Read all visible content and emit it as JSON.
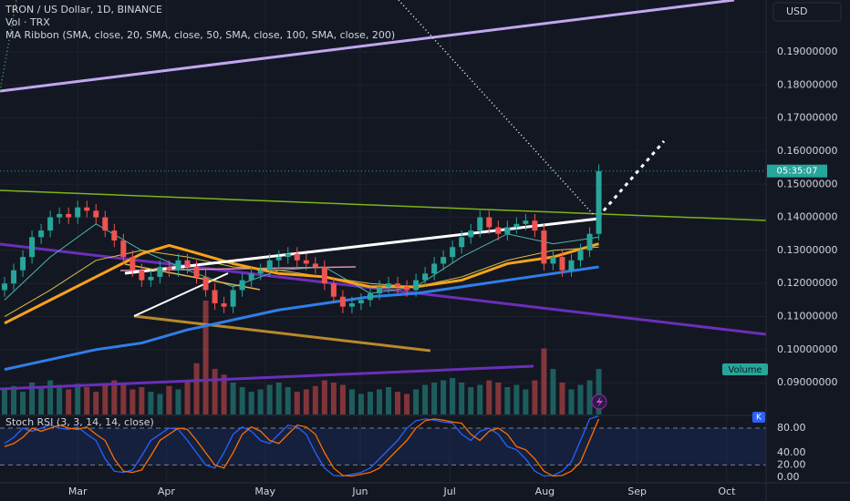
{
  "chart_data": {
    "type": "candlestick",
    "title": "TRON / US Dollar, 1D, BINANCE",
    "subtitle": "Vol · TRX",
    "indicator": "MA Ribbon (SMA, close, 20, SMA, close, 50, SMA, close, 100, SMA, close, 200)",
    "currency": "USD",
    "countdown": "05:35:07",
    "up_color": "#26a69a",
    "down_color": "#ef5350",
    "open": [
      0.118,
      0.12,
      0.124,
      0.128,
      0.134,
      0.136,
      0.14,
      0.141,
      0.14,
      0.143,
      0.142,
      0.14,
      0.136,
      0.133,
      0.128,
      0.124,
      0.121,
      0.122,
      0.125,
      0.124,
      0.127,
      0.125,
      0.122,
      0.118,
      0.114,
      0.113,
      0.118,
      0.121,
      0.123,
      0.124,
      0.127,
      0.128,
      0.129,
      0.127,
      0.126,
      0.125,
      0.12,
      0.116,
      0.113,
      0.114,
      0.115,
      0.117,
      0.119,
      0.12,
      0.119,
      0.118,
      0.121,
      0.123,
      0.126,
      0.128,
      0.131,
      0.134,
      0.136,
      0.14,
      0.137,
      0.135,
      0.137,
      0.138,
      0.139,
      0.136,
      0.126,
      0.128,
      0.124,
      0.127,
      0.13,
      0.135
    ],
    "high": [
      0.122,
      0.126,
      0.13,
      0.136,
      0.138,
      0.142,
      0.143,
      0.143,
      0.145,
      0.145,
      0.144,
      0.142,
      0.138,
      0.135,
      0.13,
      0.126,
      0.124,
      0.127,
      0.127,
      0.129,
      0.129,
      0.127,
      0.124,
      0.12,
      0.116,
      0.12,
      0.123,
      0.125,
      0.126,
      0.129,
      0.13,
      0.131,
      0.131,
      0.129,
      0.128,
      0.127,
      0.122,
      0.118,
      0.116,
      0.117,
      0.119,
      0.121,
      0.122,
      0.122,
      0.121,
      0.123,
      0.125,
      0.128,
      0.13,
      0.133,
      0.136,
      0.138,
      0.142,
      0.142,
      0.139,
      0.139,
      0.14,
      0.141,
      0.141,
      0.138,
      0.13,
      0.13,
      0.129,
      0.132,
      0.137,
      0.156
    ],
    "low": [
      0.116,
      0.118,
      0.122,
      0.126,
      0.132,
      0.134,
      0.138,
      0.138,
      0.138,
      0.14,
      0.138,
      0.134,
      0.131,
      0.126,
      0.122,
      0.119,
      0.119,
      0.12,
      0.122,
      0.122,
      0.123,
      0.12,
      0.116,
      0.112,
      0.111,
      0.111,
      0.116,
      0.119,
      0.121,
      0.122,
      0.125,
      0.126,
      0.125,
      0.124,
      0.123,
      0.118,
      0.114,
      0.111,
      0.111,
      0.112,
      0.113,
      0.115,
      0.117,
      0.117,
      0.116,
      0.116,
      0.119,
      0.121,
      0.124,
      0.126,
      0.129,
      0.132,
      0.134,
      0.135,
      0.133,
      0.133,
      0.135,
      0.136,
      0.134,
      0.124,
      0.124,
      0.122,
      0.122,
      0.125,
      0.128,
      0.133
    ],
    "close": [
      0.12,
      0.124,
      0.128,
      0.134,
      0.136,
      0.14,
      0.141,
      0.14,
      0.143,
      0.142,
      0.14,
      0.136,
      0.133,
      0.128,
      0.124,
      0.121,
      0.122,
      0.125,
      0.124,
      0.127,
      0.125,
      0.122,
      0.118,
      0.114,
      0.113,
      0.118,
      0.121,
      0.123,
      0.124,
      0.127,
      0.128,
      0.129,
      0.127,
      0.126,
      0.125,
      0.12,
      0.116,
      0.113,
      0.114,
      0.115,
      0.117,
      0.119,
      0.12,
      0.119,
      0.118,
      0.121,
      0.123,
      0.126,
      0.128,
      0.131,
      0.134,
      0.136,
      0.14,
      0.137,
      0.135,
      0.137,
      0.138,
      0.139,
      0.136,
      0.126,
      0.128,
      0.124,
      0.127,
      0.13,
      0.135,
      0.154
    ],
    "xlim": [
      -0.5,
      83.3
    ],
    "xticks": [
      {
        "value": 8,
        "label": "Mar"
      },
      {
        "value": 17.7,
        "label": "Apr"
      },
      {
        "value": 28.5,
        "label": "May"
      },
      {
        "value": 38.9,
        "label": "Jun"
      },
      {
        "value": 48.7,
        "label": "Jul"
      },
      {
        "value": 59.1,
        "label": "Aug"
      },
      {
        "value": 69.2,
        "label": "Sep"
      },
      {
        "value": 79,
        "label": "Oct"
      }
    ],
    "ylim": [
      0.0804,
      0.2057
    ],
    "yticks": [
      {
        "value": 0.09,
        "label": "0.09000000"
      },
      {
        "value": 0.1,
        "label": "0.10000000"
      },
      {
        "value": 0.11,
        "label": "0.11000000"
      },
      {
        "value": 0.12,
        "label": "0.12000000"
      },
      {
        "value": 0.13,
        "label": "0.13000000"
      },
      {
        "value": 0.14,
        "label": "0.14000000"
      },
      {
        "value": 0.15,
        "label": "0.15000000"
      },
      {
        "value": 0.16,
        "label": "0.16000000"
      },
      {
        "value": 0.17,
        "label": "0.17000000"
      },
      {
        "value": 0.18,
        "label": "0.18000000"
      },
      {
        "value": 0.19,
        "label": "0.19000000"
      }
    ],
    "volume": {
      "label": "Volume",
      "ylim": [
        0,
        100
      ],
      "values": [
        22,
        25,
        20,
        28,
        24,
        30,
        26,
        22,
        27,
        24,
        20,
        26,
        30,
        28,
        22,
        24,
        20,
        18,
        25,
        22,
        30,
        45,
        100,
        40,
        35,
        28,
        24,
        20,
        22,
        26,
        28,
        24,
        20,
        22,
        25,
        30,
        28,
        26,
        22,
        18,
        20,
        22,
        24,
        20,
        18,
        22,
        26,
        28,
        30,
        32,
        28,
        24,
        26,
        30,
        28,
        24,
        26,
        22,
        30,
        58,
        40,
        28,
        22,
        26,
        30,
        40
      ]
    },
    "ma": [
      {
        "color": "#4db6ac",
        "x": [
          0,
          5,
          10,
          15,
          20,
          25,
          30,
          35,
          40,
          45,
          50,
          55,
          60,
          65
        ],
        "values": [
          0.115,
          0.128,
          0.138,
          0.13,
          0.124,
          0.119,
          0.124,
          0.125,
          0.117,
          0.119,
          0.128,
          0.135,
          0.132,
          0.134
        ]
      },
      {
        "color": "#d4c04a",
        "x": [
          0,
          5,
          10,
          15,
          20,
          25,
          30,
          35,
          40,
          45,
          50,
          55,
          60,
          65
        ],
        "values": [
          0.11,
          0.118,
          0.127,
          0.13,
          0.128,
          0.125,
          0.124,
          0.122,
          0.12,
          0.119,
          0.122,
          0.127,
          0.13,
          0.131
        ]
      },
      {
        "color": "#f7a21b",
        "x": [
          0,
          5,
          10,
          15,
          18,
          20,
          25,
          30,
          35,
          40,
          45,
          50,
          55,
          60,
          65
        ],
        "values": [
          0.108,
          0.115,
          0.122,
          0.129,
          0.1315,
          0.13,
          0.126,
          0.123,
          0.122,
          0.119,
          0.119,
          0.121,
          0.126,
          0.128,
          0.132
        ]
      },
      {
        "color": "#2f7ee8",
        "x": [
          0,
          5,
          10,
          15,
          20,
          25,
          30,
          35,
          40,
          45,
          50,
          55,
          60,
          65
        ],
        "values": [
          0.094,
          0.097,
          0.1,
          0.102,
          0.106,
          0.109,
          0.112,
          0.114,
          0.116,
          0.117,
          0.119,
          0.121,
          0.123,
          0.125
        ]
      }
    ],
    "stoch": {
      "title": "Stoch RSI (3, 3, 14, 14, close)",
      "marker": "K",
      "ylim": [
        -8.9,
        99.3
      ],
      "yticks": [
        {
          "value": 0,
          "label": "0.00"
        },
        {
          "value": 20,
          "label": "20.00"
        },
        {
          "value": 40,
          "label": "40.00"
        },
        {
          "value": 80,
          "label": "80.00"
        }
      ],
      "band": [
        20,
        80
      ],
      "k": {
        "color": "#2962ff",
        "values": [
          55,
          65,
          80,
          75,
          80,
          85,
          80,
          78,
          82,
          70,
          60,
          30,
          10,
          8,
          12,
          35,
          60,
          70,
          80,
          78,
          60,
          40,
          20,
          15,
          40,
          70,
          82,
          75,
          60,
          55,
          70,
          85,
          82,
          70,
          40,
          15,
          3,
          2,
          5,
          8,
          15,
          30,
          45,
          60,
          80,
          92,
          95,
          93,
          90,
          88,
          70,
          60,
          75,
          80,
          70,
          50,
          45,
          30,
          10,
          2,
          3,
          10,
          25,
          60,
          95,
          100
        ]
      },
      "d": {
        "color": "#ff6d00",
        "values": [
          50,
          55,
          65,
          80,
          75,
          80,
          85,
          80,
          78,
          82,
          70,
          60,
          30,
          10,
          8,
          12,
          35,
          60,
          70,
          80,
          78,
          60,
          40,
          20,
          15,
          40,
          70,
          82,
          75,
          60,
          55,
          70,
          85,
          82,
          70,
          40,
          15,
          3,
          2,
          5,
          8,
          15,
          30,
          45,
          60,
          80,
          92,
          95,
          93,
          90,
          88,
          70,
          60,
          75,
          80,
          70,
          50,
          45,
          30,
          10,
          2,
          3,
          10,
          25,
          60,
          95
        ]
      }
    }
  }
}
